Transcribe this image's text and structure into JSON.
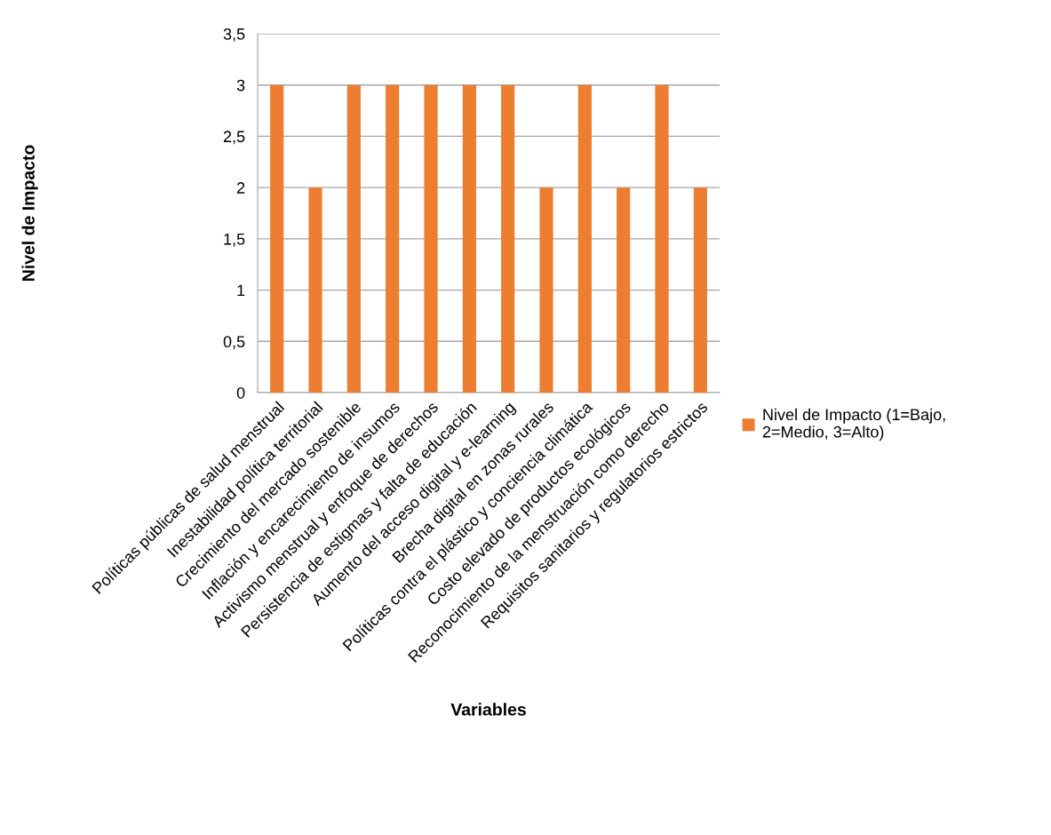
{
  "chart_data": {
    "type": "bar",
    "xlabel": "Variables",
    "ylabel": "Nivel de Impacto",
    "categories": [
      "Políticas públicas de salud menstrual",
      "Inestabilidad política territorial",
      "Crecimiento del mercado sostenible",
      "Inflación y encarecimiento de insumos",
      "Activismo menstrual y enfoque de derechos",
      "Persistencia de estigmas y falta de educación",
      "Aumento del acceso digital y e-learning",
      "Brecha digital en zonas rurales",
      "Políticas contra el plástico y conciencia climática",
      "Costo elevado de productos ecológicos",
      "Reconocimiento de la menstruación como derecho",
      "Requisitos sanitarios y regulatorios estrictos"
    ],
    "series": [
      {
        "name": "Nivel de Impacto (1=Bajo,\n2=Medio, 3=Alto)",
        "color": "#ed7d31",
        "values": [
          3,
          2,
          3,
          3,
          3,
          3,
          3,
          2,
          3,
          2,
          3,
          2
        ]
      }
    ],
    "ylim": [
      0,
      3.5
    ],
    "yticks": [
      {
        "value": 0,
        "label": "0"
      },
      {
        "value": 0.5,
        "label": "0,5"
      },
      {
        "value": 1,
        "label": "1"
      },
      {
        "value": 1.5,
        "label": "1,5"
      },
      {
        "value": 2,
        "label": "2"
      },
      {
        "value": 2.5,
        "label": "2,5"
      },
      {
        "value": 3,
        "label": "3"
      },
      {
        "value": 3.5,
        "label": "3,5"
      }
    ],
    "grid": "y",
    "legend": "right"
  }
}
